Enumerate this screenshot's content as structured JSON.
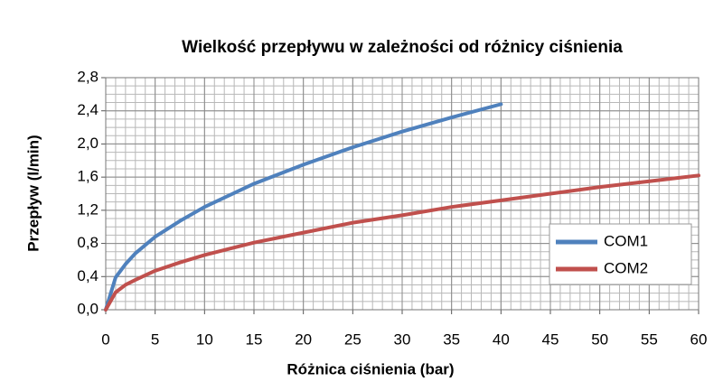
{
  "chart_data": {
    "type": "line",
    "title": "Wielkość przepływu w zależności od różnicy ciśnienia",
    "x_label": "Różnica ciśnienia (bar)",
    "y_label": "Przepływ (l/min)",
    "xlim": [
      0,
      60
    ],
    "xticks": [
      0,
      5,
      10,
      15,
      20,
      25,
      30,
      35,
      40,
      45,
      50,
      55,
      60
    ],
    "ylim": [
      0,
      2.8
    ],
    "yticks": [
      {
        "value": 0,
        "label": "0,0"
      },
      {
        "value": 0.4,
        "label": "0,4"
      },
      {
        "value": 0.8,
        "label": "0,8"
      },
      {
        "value": 1.2,
        "label": "1,2"
      },
      {
        "value": 1.6,
        "label": "1,6"
      },
      {
        "value": 2.0,
        "label": "2,0"
      },
      {
        "value": 2.4,
        "label": "2,4"
      },
      {
        "value": 2.8,
        "label": "2,8"
      }
    ],
    "grid": true,
    "minor_grid": {
      "x": 1,
      "y": 0.1
    },
    "legend": "right",
    "series": [
      {
        "name": "COM1",
        "color": "#4f81bd",
        "x": [
          0,
          1,
          2,
          3,
          5,
          7.5,
          10,
          15,
          20,
          25,
          30,
          35,
          40
        ],
        "values": [
          0,
          0.39,
          0.55,
          0.68,
          0.88,
          1.07,
          1.24,
          1.52,
          1.75,
          1.96,
          2.15,
          2.32,
          2.48
        ]
      },
      {
        "name": "COM2",
        "color": "#c0504d",
        "x": [
          0,
          1,
          2,
          3,
          5,
          7.5,
          10,
          15,
          20,
          25,
          30,
          35,
          40,
          45,
          50,
          55,
          60
        ],
        "values": [
          0,
          0.21,
          0.3,
          0.36,
          0.47,
          0.57,
          0.66,
          0.81,
          0.93,
          1.05,
          1.14,
          1.24,
          1.32,
          1.4,
          1.48,
          1.55,
          1.62
        ]
      }
    ]
  }
}
